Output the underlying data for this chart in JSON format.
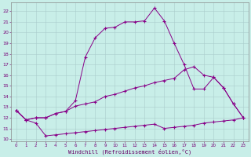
{
  "xlabel": "Windchill (Refroidissement éolien,°C)",
  "bg_color": "#c8eee8",
  "line_color": "#880088",
  "grid_color": "#aacccc",
  "xlim": [
    -0.5,
    23.5
  ],
  "ylim": [
    9.8,
    22.8
  ],
  "yticks": [
    10,
    11,
    12,
    13,
    14,
    15,
    16,
    17,
    18,
    19,
    20,
    21,
    22
  ],
  "xticks": [
    0,
    1,
    2,
    3,
    4,
    5,
    6,
    7,
    8,
    9,
    10,
    11,
    12,
    13,
    14,
    15,
    16,
    17,
    18,
    19,
    20,
    21,
    22,
    23
  ],
  "line_peak_x": [
    0,
    1,
    2,
    3,
    4,
    5,
    6,
    7,
    8,
    9,
    10,
    11,
    12,
    13,
    14,
    15,
    16,
    17,
    18,
    19,
    20,
    21,
    22,
    23
  ],
  "line_peak_y": [
    12.7,
    11.8,
    12.0,
    12.0,
    12.4,
    12.6,
    13.6,
    17.7,
    19.5,
    20.4,
    20.5,
    21.0,
    21.0,
    21.1,
    22.3,
    21.1,
    19.0,
    17.0,
    14.7,
    14.7,
    15.8,
    14.8,
    13.3,
    12.0
  ],
  "line_mid_x": [
    0,
    1,
    2,
    3,
    4,
    5,
    6,
    7,
    8,
    9,
    10,
    11,
    12,
    13,
    14,
    15,
    16,
    17,
    18,
    19,
    20,
    21,
    22,
    23
  ],
  "line_mid_y": [
    12.7,
    11.8,
    12.0,
    12.0,
    12.4,
    12.6,
    13.1,
    13.3,
    13.5,
    14.0,
    14.2,
    14.5,
    14.8,
    15.0,
    15.3,
    15.5,
    15.7,
    16.5,
    16.8,
    16.0,
    15.8,
    14.8,
    13.3,
    12.0
  ],
  "line_bot_x": [
    0,
    1,
    2,
    3,
    4,
    5,
    6,
    7,
    8,
    9,
    10,
    11,
    12,
    13,
    14,
    15,
    16,
    17,
    18,
    19,
    20,
    21,
    22,
    23
  ],
  "line_bot_y": [
    12.7,
    11.8,
    11.5,
    10.3,
    10.4,
    10.5,
    10.6,
    10.7,
    10.8,
    10.9,
    11.0,
    11.1,
    11.2,
    11.3,
    11.4,
    11.0,
    11.1,
    11.2,
    11.3,
    11.5,
    11.6,
    11.7,
    11.8,
    12.0
  ]
}
